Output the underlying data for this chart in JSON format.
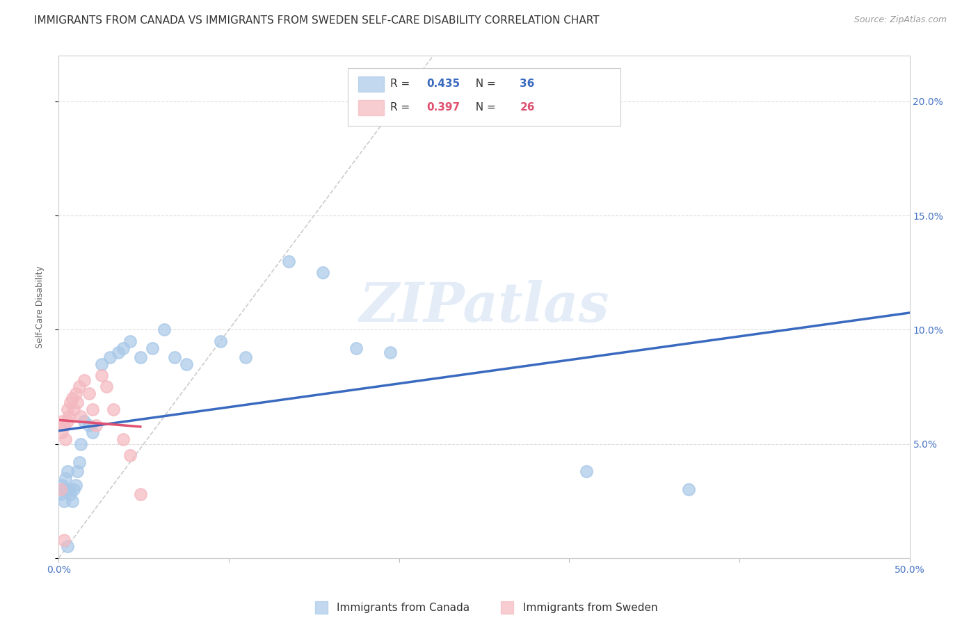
{
  "title": "IMMIGRANTS FROM CANADA VS IMMIGRANTS FROM SWEDEN SELF-CARE DISABILITY CORRELATION CHART",
  "source": "Source: ZipAtlas.com",
  "ylabel_label": "Self-Care Disability",
  "xlim": [
    0.0,
    0.5
  ],
  "ylim": [
    0.0,
    0.22
  ],
  "x_ticks": [
    0.0,
    0.1,
    0.2,
    0.3,
    0.4,
    0.5
  ],
  "x_tick_labels": [
    "0.0%",
    "",
    "",
    "",
    "",
    "50.0%"
  ],
  "y_ticks": [
    0.0,
    0.05,
    0.1,
    0.15,
    0.2
  ],
  "y_tick_labels_right": [
    "",
    "5.0%",
    "10.0%",
    "15.0%",
    "20.0%"
  ],
  "canada_color": "#a8c8e8",
  "sweden_color": "#f4b8c0",
  "canada_R": "0.435",
  "canada_N": "36",
  "sweden_R": "0.397",
  "sweden_N": "26",
  "legend_label_canada": "Immigrants from Canada",
  "legend_label_sweden": "Immigrants from Sweden",
  "canada_x": [
    0.001,
    0.002,
    0.003,
    0.003,
    0.004,
    0.005,
    0.006,
    0.007,
    0.008,
    0.009,
    0.01,
    0.011,
    0.012,
    0.013,
    0.015,
    0.018,
    0.02,
    0.025,
    0.03,
    0.035,
    0.038,
    0.042,
    0.048,
    0.055,
    0.062,
    0.068,
    0.075,
    0.095,
    0.11,
    0.135,
    0.155,
    0.175,
    0.195,
    0.31,
    0.37,
    0.005
  ],
  "canada_y": [
    0.028,
    0.032,
    0.03,
    0.025,
    0.035,
    0.038,
    0.03,
    0.028,
    0.025,
    0.03,
    0.032,
    0.038,
    0.042,
    0.05,
    0.06,
    0.058,
    0.055,
    0.085,
    0.088,
    0.09,
    0.092,
    0.095,
    0.088,
    0.092,
    0.1,
    0.088,
    0.085,
    0.095,
    0.088,
    0.13,
    0.125,
    0.092,
    0.09,
    0.038,
    0.03,
    0.005
  ],
  "sweden_x": [
    0.001,
    0.002,
    0.002,
    0.003,
    0.004,
    0.005,
    0.005,
    0.006,
    0.007,
    0.008,
    0.009,
    0.01,
    0.011,
    0.012,
    0.013,
    0.015,
    0.018,
    0.02,
    0.022,
    0.025,
    0.028,
    0.032,
    0.038,
    0.042,
    0.048,
    0.003
  ],
  "sweden_y": [
    0.03,
    0.055,
    0.06,
    0.058,
    0.052,
    0.065,
    0.06,
    0.062,
    0.068,
    0.07,
    0.065,
    0.072,
    0.068,
    0.075,
    0.062,
    0.078,
    0.072,
    0.065,
    0.058,
    0.08,
    0.075,
    0.065,
    0.052,
    0.045,
    0.028,
    0.008
  ],
  "diag_line_color": "#cccccc",
  "regression_canada_color": "#3a6abf",
  "regression_sweden_color": "#e05070",
  "background_color": "#ffffff",
  "grid_color": "#dddddd",
  "watermark_text": "ZIPatlas",
  "title_fontsize": 11,
  "axis_label_fontsize": 9,
  "tick_fontsize": 10,
  "legend_fontsize": 11,
  "stat_color_canada": "#3a6abf",
  "stat_color_sweden": "#e05070"
}
